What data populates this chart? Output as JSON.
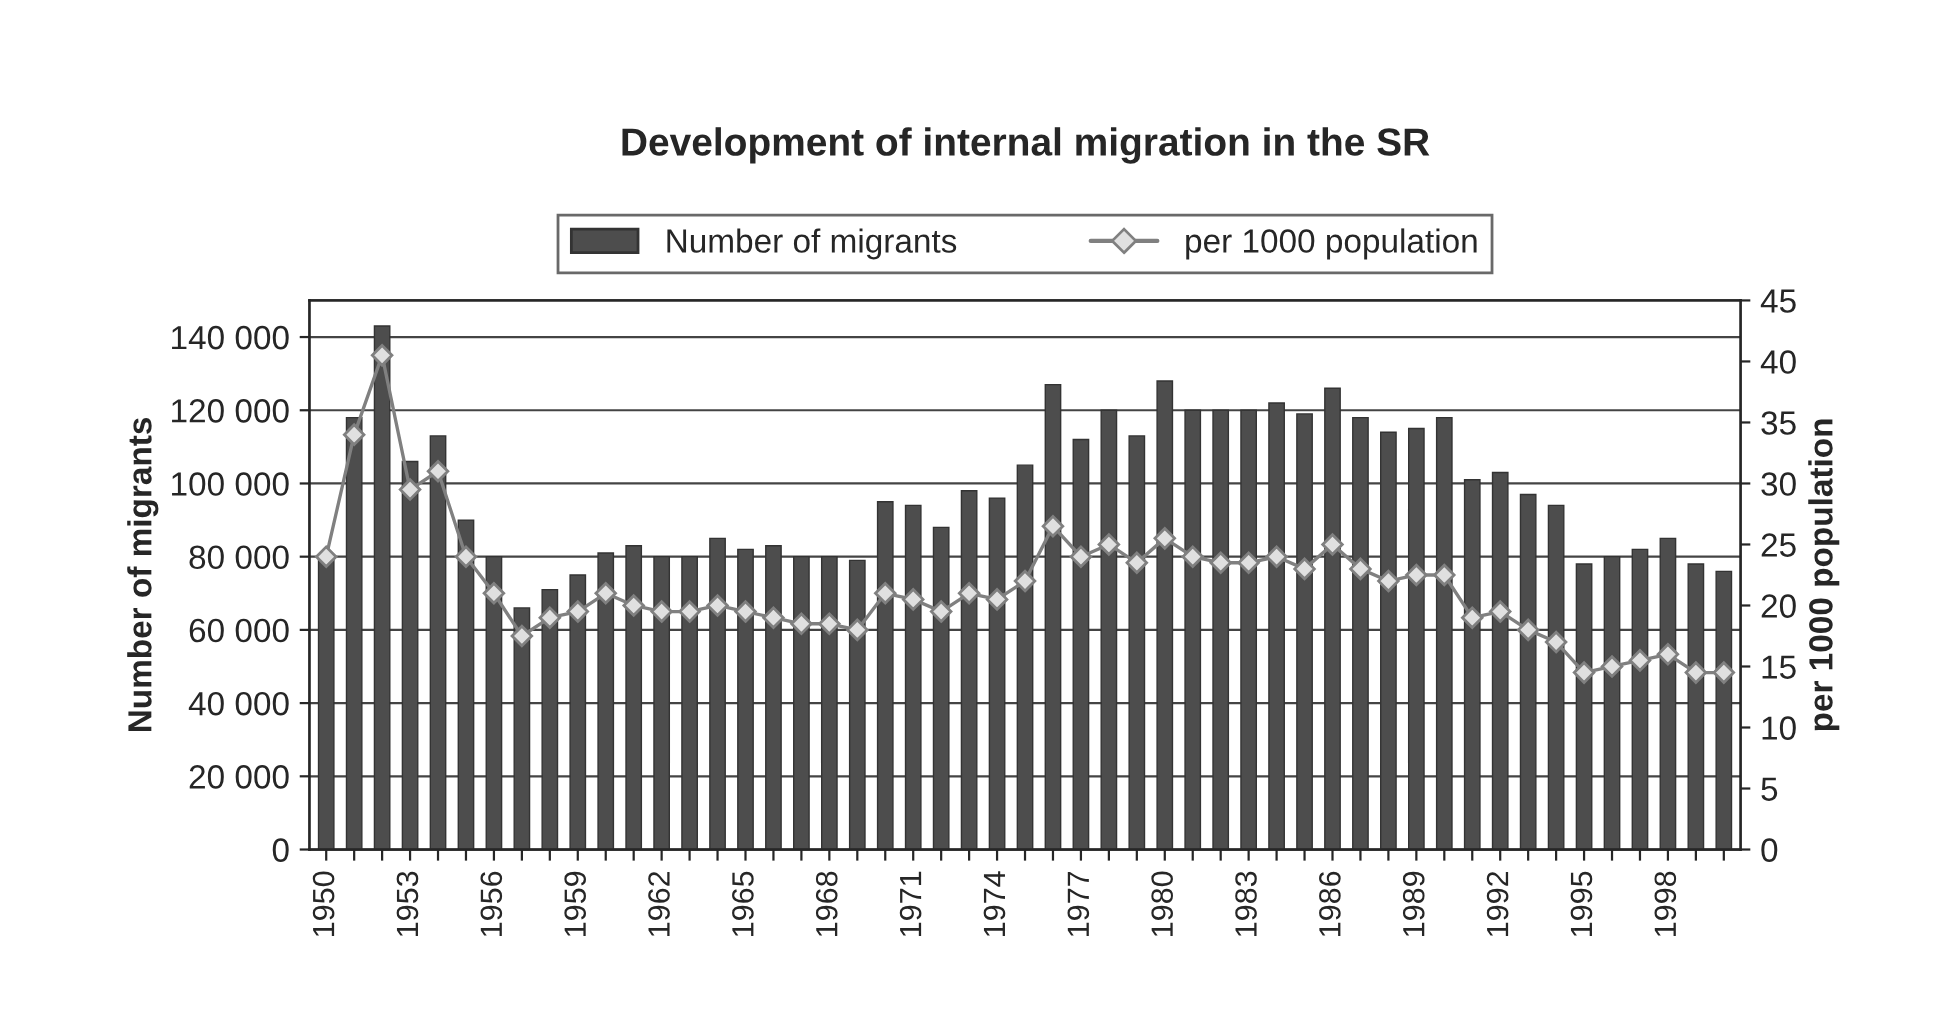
{
  "chart_data": {
    "type": "bar",
    "title": "Development of internal migration in the SR",
    "categories": [
      "1950",
      null,
      null,
      "1953",
      null,
      null,
      "1956",
      null,
      null,
      "1959",
      null,
      null,
      "1962",
      null,
      null,
      "1965",
      null,
      null,
      "1968",
      null,
      null,
      "1971",
      null,
      null,
      "1974",
      null,
      null,
      "1977",
      null,
      null,
      "1980",
      null,
      null,
      "1983",
      null,
      null,
      "1986",
      null,
      null,
      "1989",
      null,
      null,
      "1992",
      null,
      null,
      "1995",
      null,
      null,
      "1998",
      null,
      null
    ],
    "series": [
      {
        "name": "Number of migrants",
        "color": "#4d4d4d",
        "values": [
          80000,
          118000,
          143000,
          106000,
          113000,
          90000,
          80000,
          66000,
          71000,
          75000,
          81000,
          83000,
          80000,
          80000,
          85000,
          82000,
          83000,
          80000,
          80000,
          79000,
          95000,
          94000,
          88000,
          98000,
          96000,
          105000,
          127000,
          112000,
          120000,
          113000,
          128000,
          120000,
          120000,
          120000,
          122000,
          119000,
          126000,
          118000,
          114000,
          115000,
          118000,
          101000,
          103000,
          97000,
          94000,
          78000,
          80000,
          82000,
          85000,
          78000,
          76000
        ]
      },
      {
        "name": "per 1000 population",
        "type": "line",
        "axis": "y2",
        "color": "#808080",
        "marker": "diamond",
        "values": [
          24,
          34,
          40.5,
          29.5,
          31,
          24,
          21,
          17.5,
          19,
          19.5,
          21,
          20,
          19.5,
          19.5,
          20,
          19.5,
          19,
          18.5,
          18.5,
          18,
          21,
          20.5,
          19.5,
          21,
          20.5,
          22,
          26.5,
          24,
          25,
          23.5,
          25.5,
          24,
          23.5,
          23.5,
          24,
          23,
          25,
          23,
          22,
          22.5,
          22.5,
          19,
          19.5,
          18,
          17,
          14.5,
          15,
          15.5,
          16,
          14.5,
          14.5
        ]
      }
    ],
    "ylabel": "Number of migrants",
    "y2label": "per 1000 population",
    "ylim": [
      0,
      150000
    ],
    "yticks": [
      {
        "value": 0,
        "label": "0"
      },
      {
        "value": 20000,
        "label": "20 000"
      },
      {
        "value": 40000,
        "label": "40 000"
      },
      {
        "value": 60000,
        "label": "60 000"
      },
      {
        "value": 80000,
        "label": "80 000"
      },
      {
        "value": 100000,
        "label": "100 000"
      },
      {
        "value": 120000,
        "label": "120 000"
      },
      {
        "value": 140000,
        "label": "140 000"
      }
    ],
    "y2lim": [
      0,
      45
    ],
    "y2ticks": [
      0,
      5,
      10,
      15,
      20,
      25,
      30,
      35,
      40,
      45
    ],
    "grid": "y",
    "legend": "top"
  }
}
